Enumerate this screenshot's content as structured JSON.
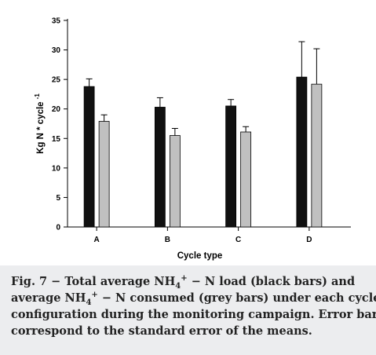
{
  "chart_data": {
    "type": "bar",
    "title": "",
    "xlabel": "Cycle type",
    "ylabel": "Kg N * cycle -1",
    "ylabel_main": "Kg N * cycle",
    "ylabel_exp": "-1",
    "ylim": [
      0,
      35
    ],
    "yticks": [
      0,
      5,
      10,
      15,
      20,
      25,
      30,
      35
    ],
    "ytick_labels": [
      "0",
      "5",
      "10",
      "15",
      "20",
      "25",
      "30",
      "35"
    ],
    "categories": [
      "A",
      "B",
      "C",
      "D"
    ],
    "grid": false,
    "legend": "none",
    "series": [
      {
        "color": "#111111",
        "values": [
          23.8,
          20.3,
          20.5,
          25.4
        ],
        "errors": [
          1.3,
          1.6,
          1.1,
          6.0
        ]
      },
      {
        "color": "#c0c0c0",
        "values": [
          17.9,
          15.5,
          16.1,
          24.2
        ],
        "errors": [
          1.1,
          1.2,
          0.9,
          6.0
        ]
      }
    ]
  },
  "caption": {
    "line1": {
      "prefix": "Fig. 7 − Total average NH",
      "sub": "4",
      "sup": "+",
      "suffix": " − N load (black bars) and"
    },
    "line2": {
      "prefix": "average NH",
      "sub": "4",
      "sup": "+",
      "suffix": " − N consumed (grey bars) under each cycle"
    },
    "line3": "configuration during the monitoring campaign. Error bars",
    "line4": "correspond to the standard error of the means."
  }
}
